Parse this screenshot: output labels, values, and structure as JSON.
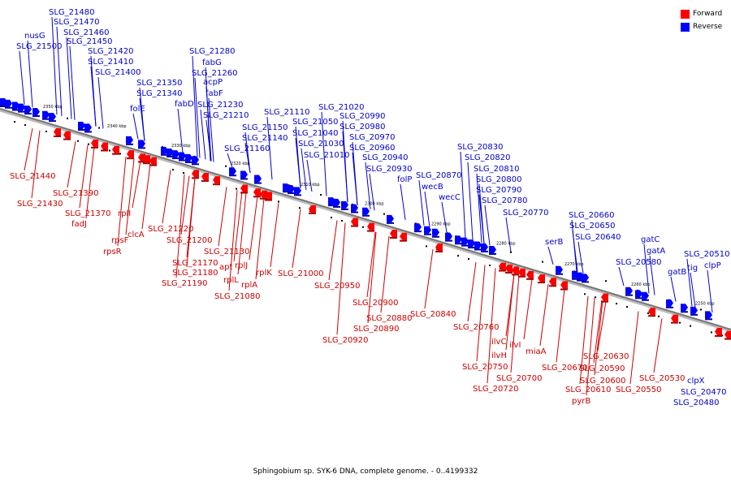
{
  "caption": "Sphingobium sp. SYK-6 DNA, complete genome. - 0..4199332",
  "legend": [
    {
      "label": "Forward",
      "color": "#ff0000"
    },
    {
      "label": "Reverse",
      "color": "#0000ff"
    }
  ],
  "colors": {
    "forward": "#ff0000",
    "reverse": "#0000ff",
    "forward_label": "#cc0000",
    "reverse_label": "#0000cc",
    "backbone": "#777777"
  },
  "ticks": [
    "2350 kbp",
    "2340 kbp",
    "2330 kbp",
    "2320 kbp",
    "2310 kbp",
    "2300 kbp",
    "2290 kbp",
    "2280 kbp",
    "2270 kbp",
    "2260 kbp",
    "2250 kbp"
  ],
  "reverse_genes": [
    "SLG_21480",
    "SLG_21470",
    "nusG",
    "SLG_21460",
    "SLG_21450",
    "SLG_21500",
    "SLG_21420",
    "SLG_21410",
    "SLG_21400",
    "SLG_21280",
    "fabG",
    "SLG_21260",
    "acpP",
    "fabF",
    "SLG_21230",
    "fabD",
    "SLG_21210",
    "SLG_21350",
    "SLG_21340",
    "folE",
    "SLG_21110",
    "SLG_21150",
    "SLG_21140",
    "SLG_21160",
    "SLG_21020",
    "SLG_20990",
    "SLG_21050",
    "SLG_20980",
    "SLG_21040",
    "SLG_20970",
    "SLG_21030",
    "SLG_20960",
    "SLG_21010",
    "SLG_20940",
    "SLG_20930",
    "folP",
    "SLG_20830",
    "SLG_20820",
    "SLG_20870",
    "SLG_20810",
    "wecB",
    "SLG_20800",
    "wecC",
    "SLG_20790",
    "SLG_20780",
    "SLG_20770",
    "SLG_20660",
    "SLG_20650",
    "serB",
    "SLG_20640",
    "gatC",
    "gatA",
    "SLG_20580",
    "SLG_20510",
    "gatB",
    "tig",
    "clpP",
    "clpX",
    "SLG_20470",
    "SLG_20480"
  ],
  "forward_genes": [
    "SLG_21440",
    "SLG_21430",
    "SLG_21390",
    "SLG_21370",
    "rplI",
    "fadJ",
    "rpsF",
    "clcA",
    "rpsR",
    "SLG_21220",
    "SLG_21200",
    "SLG_21130",
    "SLG_21170",
    "apt",
    "rplJ",
    "SLG_21180",
    "rplK",
    "SLG_21190",
    "rplL",
    "rplA",
    "SLG_21080",
    "SLG_21000",
    "SLG_20950",
    "SLG_20900",
    "SLG_20880",
    "SLG_20890",
    "SLG_20840",
    "SLG_20920",
    "SLG_20760",
    "ilvC",
    "ilvI",
    "miaA",
    "ilvH",
    "SLG_20750",
    "SLG_20700",
    "SLG_20670",
    "SLG_20720",
    "SLG_20630",
    "SLG_20590",
    "SLG_20600",
    "SLG_20530",
    "SLG_20610",
    "SLG_20550",
    "pyrB"
  ]
}
